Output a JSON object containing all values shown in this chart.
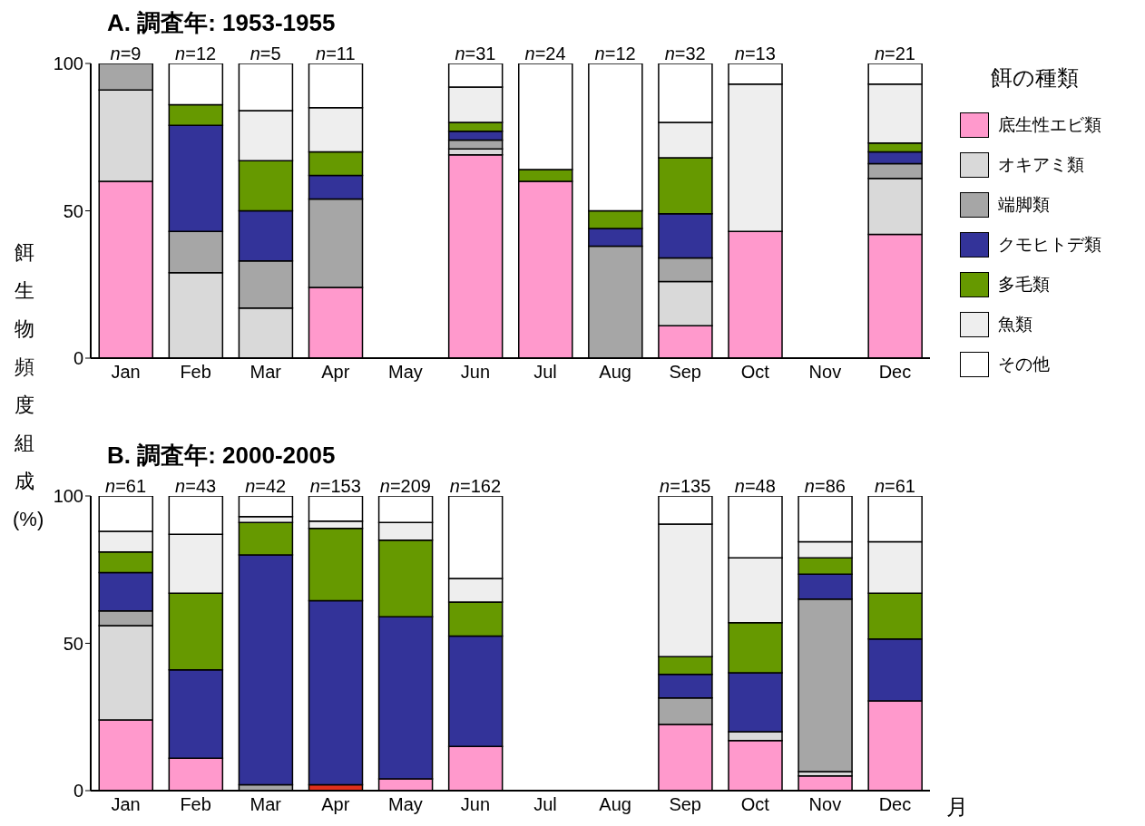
{
  "chart_data": [
    {
      "type": "bar",
      "title": "A. 調査年: 1953-1955",
      "ylabel": "餌生物頻度組成 (%)",
      "stacked": true,
      "legend": "right",
      "legend_title": "餌の種類",
      "categories": [
        "Jan",
        "Feb",
        "Mar",
        "Apr",
        "May",
        "Jun",
        "Jul",
        "Aug",
        "Sep",
        "Oct",
        "Nov",
        "Dec"
      ],
      "ylim": [
        0,
        100
      ],
      "yticks": [
        0,
        50,
        100
      ],
      "annotations": [
        {
          "text": "n=9",
          "x": "Jan",
          "y": 100
        },
        {
          "text": "n=12",
          "x": "Feb",
          "y": 100
        },
        {
          "text": "n=5",
          "x": "Mar",
          "y": 100
        },
        {
          "text": "n=11",
          "x": "Apr",
          "y": 100
        },
        {
          "text": "n=31",
          "x": "Jun",
          "y": 100
        },
        {
          "text": "n=24",
          "x": "Jul",
          "y": 100
        },
        {
          "text": "n=12",
          "x": "Aug",
          "y": 100
        },
        {
          "text": "n=32",
          "x": "Sep",
          "y": 100
        },
        {
          "text": "n=13",
          "x": "Oct",
          "y": 100
        },
        {
          "text": "n=21",
          "x": "Dec",
          "y": 100
        }
      ],
      "series": [
        {
          "name": "底生性エビ類",
          "color": "#ff99cc",
          "values": [
            60,
            0,
            0,
            24,
            null,
            69,
            60,
            0,
            11,
            43,
            null,
            42
          ]
        },
        {
          "name": "オキアミ類",
          "color": "#d9d9d9",
          "values": [
            31,
            29,
            17,
            0,
            null,
            2,
            0,
            0,
            15,
            0,
            null,
            19
          ]
        },
        {
          "name": "端脚類",
          "color": "#a6a6a6",
          "values": [
            9,
            14,
            16,
            30,
            null,
            3,
            0,
            38,
            8,
            0,
            null,
            5
          ]
        },
        {
          "name": "クモヒトデ類",
          "color": "#333399",
          "values": [
            0,
            36,
            17,
            8,
            null,
            3,
            0,
            6,
            15,
            0,
            null,
            4
          ]
        },
        {
          "name": "多毛類",
          "color": "#669900",
          "values": [
            0,
            7,
            17,
            8,
            null,
            3,
            4,
            6,
            19,
            0,
            null,
            3
          ]
        },
        {
          "name": "魚類",
          "color": "#eeeeee",
          "values": [
            0,
            0,
            17,
            15,
            null,
            12,
            0,
            0,
            12,
            50,
            null,
            20
          ]
        },
        {
          "name": "その他",
          "color": "#ffffff",
          "values": [
            0,
            14,
            16,
            15,
            null,
            8,
            36,
            50,
            20,
            7,
            null,
            7
          ]
        }
      ]
    },
    {
      "type": "bar",
      "title": "B. 調査年: 2000-2005",
      "xlabel": "月",
      "stacked": true,
      "categories": [
        "Jan",
        "Feb",
        "Mar",
        "Apr",
        "May",
        "Jun",
        "Jul",
        "Aug",
        "Sep",
        "Oct",
        "Nov",
        "Dec"
      ],
      "ylim": [
        0,
        100
      ],
      "yticks": [
        0,
        50,
        100
      ],
      "annotations": [
        {
          "text": "n=61",
          "x": "Jan",
          "y": 100
        },
        {
          "text": "n=43",
          "x": "Feb",
          "y": 100
        },
        {
          "text": "n=42",
          "x": "Mar",
          "y": 100
        },
        {
          "text": "n=153",
          "x": "Apr",
          "y": 100
        },
        {
          "text": "n=209",
          "x": "May",
          "y": 100
        },
        {
          "text": "n=162",
          "x": "Jun",
          "y": 100
        },
        {
          "text": "n=135",
          "x": "Sep",
          "y": 100
        },
        {
          "text": "n=48",
          "x": "Oct",
          "y": 100
        },
        {
          "text": "n=86",
          "x": "Nov",
          "y": 100
        },
        {
          "text": "n=61",
          "x": "Dec",
          "y": 100
        }
      ],
      "series": [
        {
          "color": "#e0301e",
          "values": [
            0,
            0,
            0,
            2,
            0,
            0,
            null,
            null,
            0,
            0,
            0,
            0
          ]
        },
        {
          "color": "#ff99cc",
          "values": [
            24,
            11,
            0,
            0,
            4,
            15,
            null,
            null,
            22.5,
            17,
            5,
            30.5
          ]
        },
        {
          "color": "#d9d9d9",
          "values": [
            32,
            0,
            0,
            0,
            0,
            0,
            null,
            null,
            0,
            3,
            1.5,
            0
          ]
        },
        {
          "color": "#a6a6a6",
          "values": [
            5,
            0,
            2,
            0,
            0,
            0,
            null,
            null,
            9,
            0,
            58.5,
            0
          ]
        },
        {
          "color": "#333399",
          "values": [
            13,
            30,
            78,
            62.5,
            55,
            37.5,
            null,
            null,
            8,
            20,
            8.5,
            21
          ]
        },
        {
          "color": "#669900",
          "values": [
            7,
            26,
            11,
            24.5,
            26,
            11.5,
            null,
            null,
            6,
            17,
            5.5,
            15.5
          ]
        },
        {
          "color": "#eeeeee",
          "values": [
            7,
            20,
            2,
            2.5,
            6,
            8,
            null,
            null,
            45,
            22,
            5.5,
            17.5
          ]
        },
        {
          "color": "#ffffff",
          "values": [
            12,
            13,
            7,
            8.5,
            9,
            28,
            null,
            null,
            9.5,
            21,
            15.5,
            15.5
          ]
        }
      ]
    }
  ]
}
